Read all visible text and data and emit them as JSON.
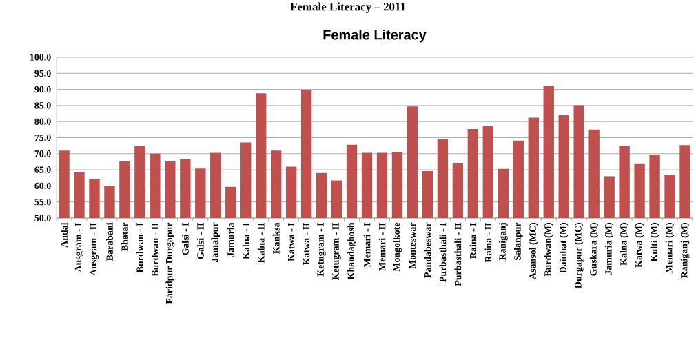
{
  "chart_data": {
    "type": "bar",
    "title": "Female Literacy",
    "annotations": [
      "Female Literacy – 2011"
    ],
    "categories": [
      "Andal",
      "Ausgram - I",
      "Ausgram - II",
      "Barabani",
      "Bhatar",
      "Burdwan - I",
      "Burdwan - II",
      "Faridpur Durgapur",
      "Galsi - I",
      "Galsi - II",
      "Jamalpur",
      "Jamuria",
      "Kalna - I",
      "Kalna - II",
      "Kanksa",
      "Katwa - I",
      "Katwa - II",
      "Ketugram - I",
      "Ketugram - II",
      "Khandaghosh",
      "Memari - I",
      "Memari - II",
      "Mongolkote",
      "Monteswar",
      "Pandabeswar",
      "Purbasthali - I",
      "Purbasthali - II",
      "Raina - I",
      "Raina - II",
      "Raniganj",
      "Salanpur",
      "Asansol (MC)",
      "Burdwan(M)",
      "Dainhat (M)",
      "Durgapur (MC)",
      "Guskara (M)",
      "Jamuria (M)",
      "Kalna (M)",
      "Katwa (M)",
      "Kulti (M)",
      "Memari (M)",
      "Raniganj (M)"
    ],
    "values": [
      71.0,
      64.4,
      62.2,
      60.0,
      67.6,
      72.3,
      70.0,
      67.6,
      68.3,
      65.4,
      70.3,
      59.7,
      73.5,
      88.8,
      71.0,
      66.0,
      89.8,
      64.0,
      61.7,
      72.8,
      70.3,
      70.3,
      70.5,
      84.7,
      64.6,
      74.6,
      67.1,
      77.7,
      78.7,
      65.3,
      74.1,
      81.2,
      91.1,
      82.0,
      85.1,
      77.5,
      63.0,
      72.3,
      66.8,
      69.6,
      63.5,
      72.7
    ],
    "color": "#c0504d",
    "ylim": [
      50,
      100
    ],
    "yticks": [
      {
        "value": 50,
        "label": "50.0"
      },
      {
        "value": 55,
        "label": "55.0"
      },
      {
        "value": 60,
        "label": "60.0"
      },
      {
        "value": 65,
        "label": "65.0"
      },
      {
        "value": 70,
        "label": "70.0"
      },
      {
        "value": 75,
        "label": "75.0"
      },
      {
        "value": 80,
        "label": "80.0"
      },
      {
        "value": 85,
        "label": "85.0"
      },
      {
        "value": 90,
        "label": "90.0"
      },
      {
        "value": 95,
        "label": "95.0"
      },
      {
        "value": 100,
        "label": "100.0"
      }
    ],
    "grid": "y"
  }
}
